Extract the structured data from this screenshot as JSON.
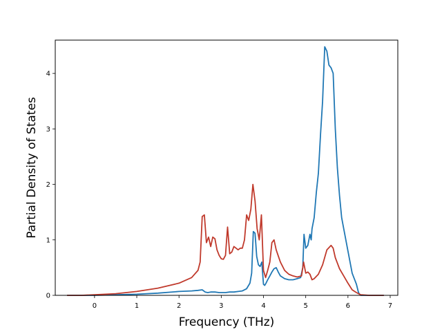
{
  "chart_data": {
    "type": "line",
    "title": "",
    "xlabel": "Frequency (THz)",
    "ylabel": "Partial Density of States",
    "xlim": [
      -0.93,
      7.18
    ],
    "ylim": [
      0,
      4.6
    ],
    "xticks": [
      0,
      1,
      2,
      3,
      4,
      5,
      6,
      7
    ],
    "yticks": [
      0,
      1,
      2,
      3,
      4
    ],
    "grid": false,
    "series": [
      {
        "color": "#1f77b4",
        "x": [
          -0.65,
          -0.3,
          0,
          0.5,
          1,
          1.5,
          2,
          2.3,
          2.45,
          2.55,
          2.62,
          2.68,
          2.75,
          2.85,
          2.95,
          3.1,
          3.2,
          3.3,
          3.4,
          3.5,
          3.6,
          3.68,
          3.72,
          3.76,
          3.8,
          3.84,
          3.88,
          3.92,
          3.96,
          4.0,
          4.03,
          4.06,
          4.1,
          4.15,
          4.2,
          4.25,
          4.3,
          4.35,
          4.4,
          4.5,
          4.6,
          4.7,
          4.8,
          4.88,
          4.93,
          4.96,
          5.0,
          5.05,
          5.1,
          5.13,
          5.15,
          5.2,
          5.25,
          5.3,
          5.35,
          5.4,
          5.45,
          5.5,
          5.55,
          5.6,
          5.65,
          5.7,
          5.75,
          5.8,
          5.85,
          5.9,
          6.0,
          6.1,
          6.15,
          6.2,
          6.25,
          6.3,
          6.5,
          6.85
        ],
        "y": [
          0,
          0,
          0,
          0.01,
          0.02,
          0.04,
          0.07,
          0.08,
          0.09,
          0.1,
          0.06,
          0.05,
          0.06,
          0.06,
          0.05,
          0.05,
          0.06,
          0.06,
          0.07,
          0.08,
          0.12,
          0.22,
          0.4,
          1.15,
          1.12,
          0.7,
          0.55,
          0.52,
          0.6,
          0.2,
          0.18,
          0.22,
          0.28,
          0.35,
          0.42,
          0.48,
          0.5,
          0.42,
          0.35,
          0.3,
          0.28,
          0.28,
          0.3,
          0.32,
          0.5,
          1.1,
          0.85,
          0.9,
          1.1,
          1.0,
          1.2,
          1.4,
          1.85,
          2.2,
          2.9,
          3.5,
          4.48,
          4.4,
          4.15,
          4.1,
          4.0,
          3.0,
          2.3,
          1.8,
          1.4,
          1.2,
          0.8,
          0.4,
          0.3,
          0.2,
          0.05,
          0,
          0,
          0
        ]
      },
      {
        "color": "#c0392b",
        "x": [
          -0.65,
          -0.3,
          0,
          0.5,
          1,
          1.5,
          2,
          2.3,
          2.45,
          2.5,
          2.55,
          2.6,
          2.65,
          2.7,
          2.75,
          2.8,
          2.85,
          2.9,
          2.95,
          3.0,
          3.05,
          3.1,
          3.15,
          3.2,
          3.25,
          3.3,
          3.35,
          3.4,
          3.45,
          3.5,
          3.55,
          3.6,
          3.65,
          3.7,
          3.75,
          3.8,
          3.85,
          3.9,
          3.95,
          4.0,
          4.05,
          4.1,
          4.15,
          4.2,
          4.25,
          4.3,
          4.4,
          4.5,
          4.6,
          4.7,
          4.8,
          4.9,
          4.95,
          5.0,
          5.05,
          5.1,
          5.15,
          5.2,
          5.3,
          5.4,
          5.5,
          5.6,
          5.65,
          5.7,
          5.8,
          5.9,
          6.0,
          6.1,
          6.2,
          6.3,
          6.5,
          6.85
        ],
        "y": [
          0,
          0,
          0.01,
          0.03,
          0.07,
          0.13,
          0.22,
          0.32,
          0.45,
          0.6,
          1.42,
          1.45,
          0.95,
          1.05,
          0.88,
          1.05,
          1.02,
          0.82,
          0.72,
          0.66,
          0.65,
          0.72,
          1.23,
          0.75,
          0.78,
          0.88,
          0.85,
          0.82,
          0.85,
          0.85,
          1.0,
          1.45,
          1.35,
          1.55,
          2.0,
          1.7,
          1.2,
          1.0,
          1.45,
          0.45,
          0.32,
          0.45,
          0.6,
          0.95,
          1.0,
          0.82,
          0.6,
          0.45,
          0.38,
          0.35,
          0.33,
          0.35,
          0.6,
          0.4,
          0.42,
          0.38,
          0.28,
          0.3,
          0.38,
          0.55,
          0.82,
          0.9,
          0.85,
          0.68,
          0.48,
          0.35,
          0.22,
          0.1,
          0.05,
          0.01,
          0,
          0
        ]
      }
    ]
  }
}
